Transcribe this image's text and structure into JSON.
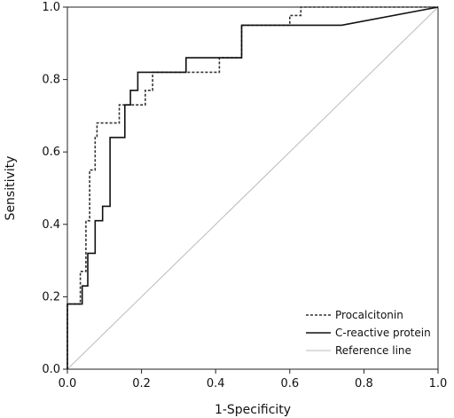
{
  "chart_data": {
    "type": "line",
    "title": "",
    "xlabel": "1-Specificity",
    "ylabel": "Sensitivity",
    "xlim": [
      0,
      1
    ],
    "ylim": [
      0,
      1
    ],
    "xticks": [
      0.0,
      0.2,
      0.4,
      0.6,
      0.8,
      1.0
    ],
    "yticks": [
      0.0,
      0.2,
      0.4,
      0.6,
      0.8,
      1.0
    ],
    "xtick_labels": [
      "0.0",
      "0.2",
      "0.4",
      "0.6",
      "0.8",
      "1.0"
    ],
    "ytick_labels": [
      "0.0",
      "0.2",
      "0.4",
      "0.6",
      "0.8",
      "1.0"
    ],
    "grid": false,
    "legend_position": "bottom-right",
    "series": [
      {
        "name": "Procalcitonin",
        "style": "dotted",
        "color": "#333333",
        "x": [
          0,
          0,
          0.035,
          0.035,
          0.05,
          0.05,
          0.06,
          0.06,
          0.075,
          0.075,
          0.08,
          0.08,
          0.14,
          0.14,
          0.21,
          0.21,
          0.23,
          0.23,
          0.41,
          0.41,
          0.47,
          0.47,
          0.6,
          0.6,
          0.63,
          0.63,
          1.0
        ],
        "y": [
          0,
          0.18,
          0.18,
          0.27,
          0.27,
          0.41,
          0.41,
          0.55,
          0.55,
          0.64,
          0.64,
          0.68,
          0.68,
          0.73,
          0.73,
          0.77,
          0.77,
          0.82,
          0.82,
          0.86,
          0.86,
          0.95,
          0.95,
          0.977,
          0.977,
          1.0,
          1.0
        ]
      },
      {
        "name": "C-reactive protein",
        "style": "solid",
        "color": "#111111",
        "x": [
          0,
          0,
          0.04,
          0.04,
          0.055,
          0.055,
          0.075,
          0.075,
          0.095,
          0.095,
          0.115,
          0.115,
          0.155,
          0.155,
          0.17,
          0.17,
          0.19,
          0.19,
          0.32,
          0.32,
          0.47,
          0.47,
          0.74,
          1.0
        ],
        "y": [
          0,
          0.18,
          0.18,
          0.23,
          0.23,
          0.32,
          0.32,
          0.41,
          0.41,
          0.45,
          0.45,
          0.64,
          0.64,
          0.73,
          0.73,
          0.77,
          0.77,
          0.82,
          0.82,
          0.86,
          0.86,
          0.95,
          0.95,
          1.0
        ]
      },
      {
        "name": "Reference line",
        "style": "solid",
        "color": "#bbbbbb",
        "x": [
          0,
          1
        ],
        "y": [
          0,
          1
        ]
      }
    ]
  }
}
